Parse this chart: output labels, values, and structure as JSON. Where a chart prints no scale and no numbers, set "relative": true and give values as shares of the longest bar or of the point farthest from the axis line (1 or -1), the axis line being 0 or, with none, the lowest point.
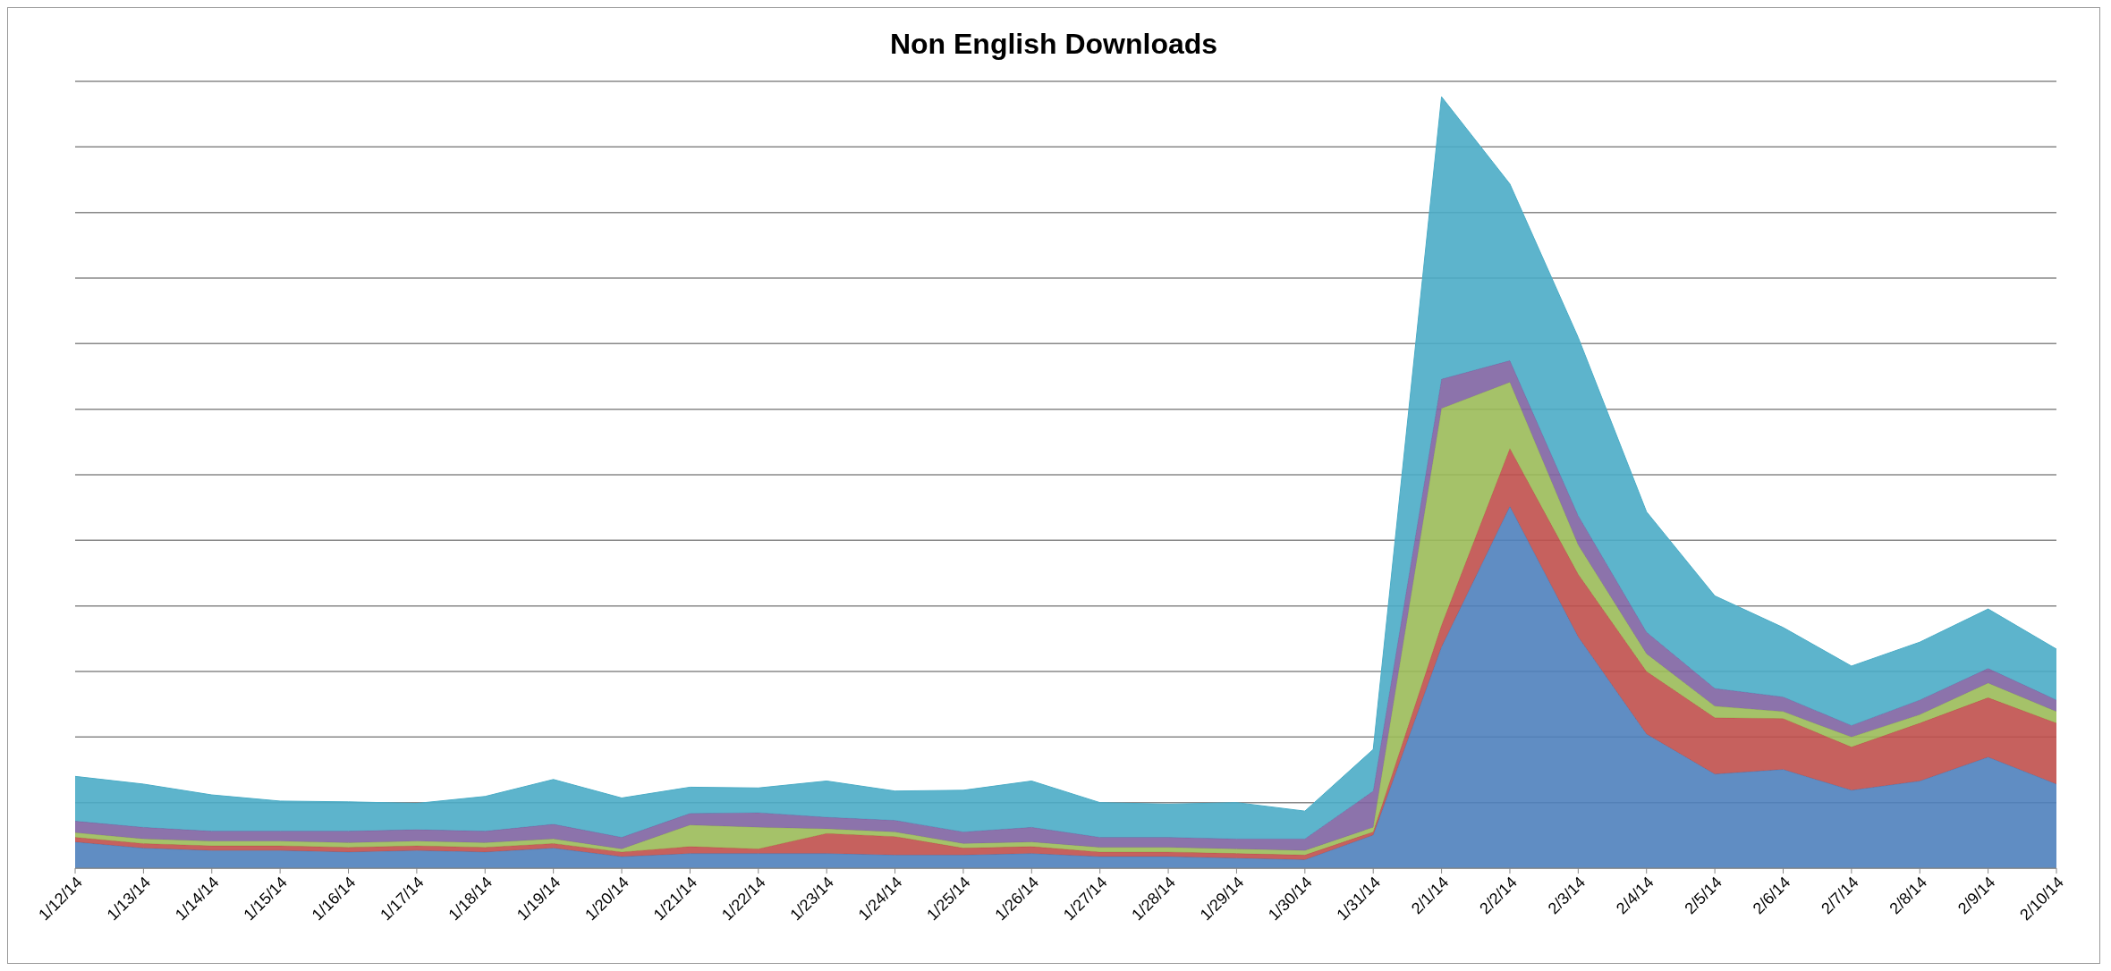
{
  "chart_data": {
    "type": "area",
    "title": "Non English Downloads",
    "stacked": true,
    "relative": true,
    "grid": "y",
    "legend": false,
    "categories": [
      "1/12/14",
      "1/13/14",
      "1/14/14",
      "1/15/14",
      "1/16/14",
      "1/17/14",
      "1/18/14",
      "1/19/14",
      "1/20/14",
      "1/21/14",
      "1/22/14",
      "1/23/14",
      "1/24/14",
      "1/25/14",
      "1/26/14",
      "1/27/14",
      "1/28/14",
      "1/29/14",
      "1/30/14",
      "1/31/14",
      "2/1/14",
      "2/2/14",
      "2/3/14",
      "2/4/14",
      "2/5/14",
      "2/6/14",
      "2/7/14",
      "2/8/14",
      "2/9/14",
      "2/10/14"
    ],
    "series": [
      {
        "color": "#4f81bd",
        "values": [
          0.034,
          0.026,
          0.023,
          0.023,
          0.021,
          0.023,
          0.021,
          0.026,
          0.015,
          0.019,
          0.019,
          0.019,
          0.017,
          0.017,
          0.019,
          0.015,
          0.015,
          0.013,
          0.011,
          0.043,
          0.287,
          0.469,
          0.3,
          0.174,
          0.122,
          0.128,
          0.101,
          0.113,
          0.144,
          0.109
        ]
      },
      {
        "color": "#c0504d",
        "values": [
          0.006,
          0.006,
          0.006,
          0.006,
          0.006,
          0.006,
          0.006,
          0.006,
          0.006,
          0.009,
          0.006,
          0.026,
          0.024,
          0.009,
          0.009,
          0.006,
          0.006,
          0.006,
          0.006,
          0.004,
          0.028,
          0.075,
          0.081,
          0.081,
          0.073,
          0.066,
          0.056,
          0.075,
          0.077,
          0.079
        ]
      },
      {
        "color": "#9bbb59",
        "values": [
          0.006,
          0.006,
          0.006,
          0.006,
          0.006,
          0.006,
          0.006,
          0.006,
          0.004,
          0.028,
          0.028,
          0.006,
          0.006,
          0.006,
          0.006,
          0.006,
          0.006,
          0.006,
          0.006,
          0.006,
          0.281,
          0.086,
          0.038,
          0.023,
          0.015,
          0.009,
          0.013,
          0.011,
          0.019,
          0.015
        ]
      },
      {
        "color": "#8064a2",
        "values": [
          0.015,
          0.015,
          0.013,
          0.013,
          0.015,
          0.015,
          0.015,
          0.019,
          0.015,
          0.015,
          0.019,
          0.015,
          0.015,
          0.015,
          0.019,
          0.013,
          0.013,
          0.013,
          0.015,
          0.047,
          0.038,
          0.028,
          0.038,
          0.028,
          0.023,
          0.019,
          0.015,
          0.019,
          0.019,
          0.015
        ]
      },
      {
        "color": "#4bacc6",
        "values": [
          0.058,
          0.056,
          0.047,
          0.039,
          0.038,
          0.034,
          0.045,
          0.058,
          0.051,
          0.034,
          0.032,
          0.047,
          0.038,
          0.054,
          0.06,
          0.045,
          0.043,
          0.047,
          0.036,
          0.054,
          0.366,
          0.229,
          0.231,
          0.156,
          0.12,
          0.09,
          0.077,
          0.075,
          0.077,
          0.066
        ]
      }
    ]
  }
}
